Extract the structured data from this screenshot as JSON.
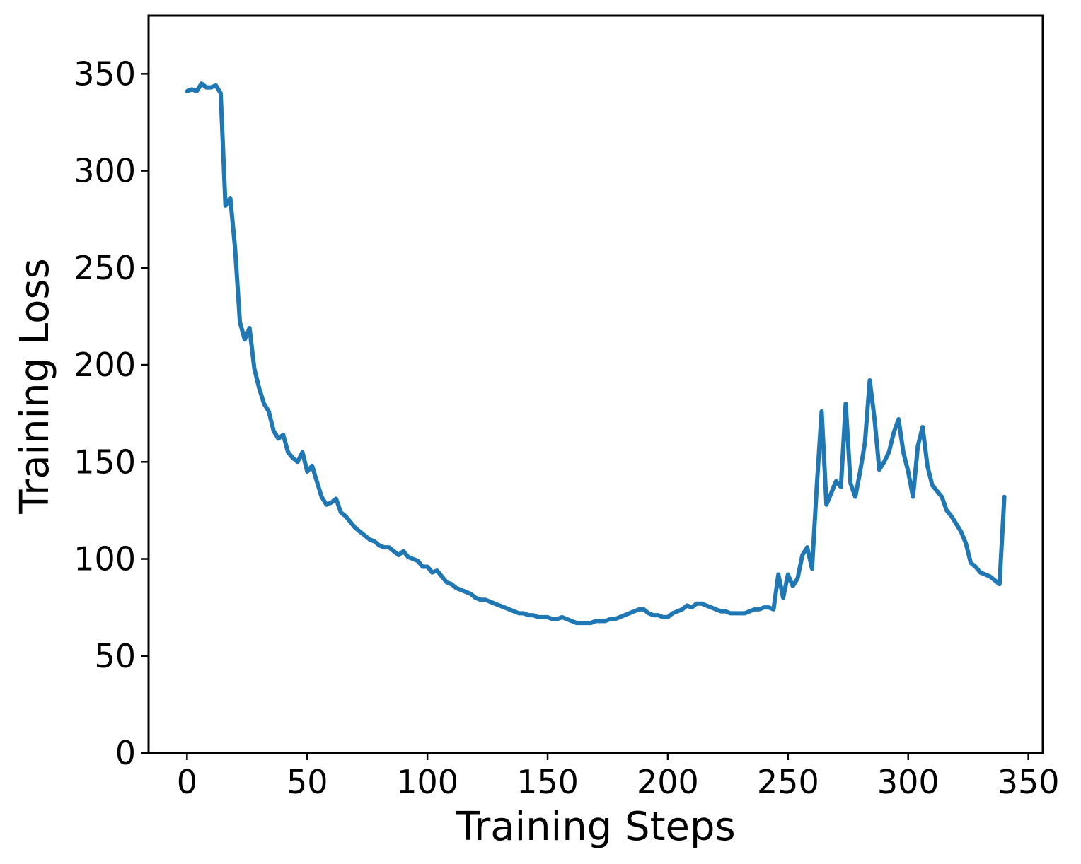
{
  "chart_data": {
    "type": "line",
    "title": "",
    "xlabel": "Training Steps",
    "ylabel": "Training Loss",
    "xlim": [
      -16,
      356
    ],
    "ylim": [
      0,
      380
    ],
    "xticks": [
      0,
      50,
      100,
      150,
      200,
      250,
      300,
      350
    ],
    "yticks": [
      0,
      50,
      100,
      150,
      200,
      250,
      300,
      350
    ],
    "grid": false,
    "series": [
      {
        "color": "#1f77b4",
        "x": [
          0,
          2,
          4,
          6,
          8,
          10,
          12,
          14,
          16,
          18,
          20,
          22,
          24,
          26,
          28,
          30,
          32,
          34,
          36,
          38,
          40,
          42,
          44,
          46,
          48,
          50,
          52,
          54,
          56,
          58,
          60,
          62,
          64,
          66,
          68,
          70,
          72,
          74,
          76,
          78,
          80,
          82,
          84,
          86,
          88,
          90,
          92,
          94,
          96,
          98,
          100,
          102,
          104,
          106,
          108,
          110,
          112,
          114,
          116,
          118,
          120,
          122,
          124,
          126,
          128,
          130,
          132,
          134,
          136,
          138,
          140,
          142,
          144,
          146,
          148,
          150,
          152,
          154,
          156,
          158,
          160,
          162,
          164,
          166,
          168,
          170,
          172,
          174,
          176,
          178,
          180,
          182,
          184,
          186,
          188,
          190,
          192,
          194,
          196,
          198,
          200,
          202,
          204,
          206,
          208,
          210,
          212,
          214,
          216,
          218,
          220,
          222,
          224,
          226,
          228,
          230,
          232,
          234,
          236,
          238,
          240,
          242,
          244,
          246,
          248,
          250,
          252,
          254,
          256,
          258,
          260,
          262,
          264,
          266,
          268,
          270,
          272,
          274,
          276,
          278,
          280,
          282,
          284,
          286,
          288,
          290,
          292,
          294,
          296,
          298,
          300,
          302,
          304,
          306,
          308,
          310,
          312,
          314,
          316,
          318,
          320,
          322,
          324,
          326,
          328,
          330,
          332,
          334,
          336,
          338,
          340
        ],
        "values": [
          341,
          342,
          341,
          345,
          343,
          343,
          344,
          340,
          282,
          286,
          260,
          222,
          213,
          219,
          198,
          188,
          180,
          176,
          166,
          162,
          164,
          155,
          152,
          150,
          155,
          145,
          148,
          140,
          132,
          128,
          129,
          131,
          124,
          122,
          119,
          116,
          114,
          112,
          110,
          109,
          107,
          106,
          106,
          104,
          102,
          104,
          101,
          100,
          99,
          96,
          96,
          93,
          94,
          91,
          88,
          87,
          85,
          84,
          83,
          82,
          80,
          79,
          79,
          78,
          77,
          76,
          75,
          74,
          73,
          72,
          72,
          71,
          71,
          70,
          70,
          70,
          69,
          69,
          70,
          69,
          68,
          67,
          67,
          67,
          67,
          68,
          68,
          68,
          69,
          69,
          70,
          71,
          72,
          73,
          74,
          74,
          72,
          71,
          71,
          70,
          70,
          72,
          73,
          74,
          76,
          75,
          77,
          77,
          76,
          75,
          74,
          73,
          73,
          72,
          72,
          72,
          72,
          73,
          74,
          74,
          75,
          75,
          74,
          92,
          80,
          92,
          86,
          90,
          102,
          106,
          95,
          138,
          176,
          128,
          134,
          140,
          137,
          180,
          139,
          132,
          145,
          160,
          192,
          172,
          146,
          150,
          155,
          165,
          172,
          155,
          145,
          132,
          158,
          168,
          148,
          138,
          135,
          132,
          125,
          122,
          118,
          114,
          108,
          98,
          96,
          93,
          92,
          91,
          89,
          87,
          132
        ]
      }
    ]
  }
}
